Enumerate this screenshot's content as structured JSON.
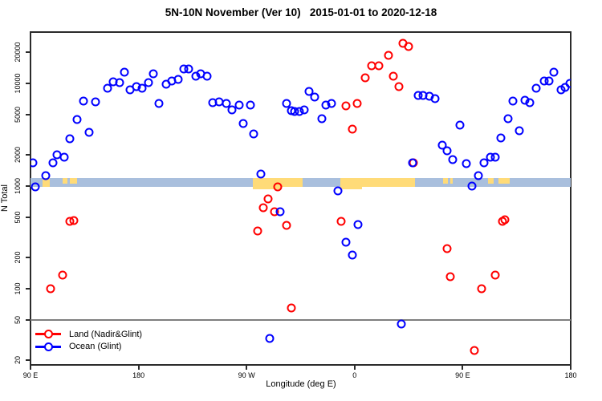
{
  "chart_data": {
    "type": "scatter",
    "title": "5N-10N November (Ver 10)   2015-01-01 to 2020-12-18",
    "xlabel": "Longitude (deg E)",
    "ylabel": "N Total",
    "y_scale": "log",
    "ylim": [
      18,
      32000
    ],
    "y_ticks": [
      20,
      50,
      100,
      200,
      500,
      1000,
      2000,
      5000,
      10000,
      20000
    ],
    "x_axis_note": "x stored as degrees along axis: 0=90E, 90=180, 180=90W, 270=0, 360=90E, 450=180",
    "x_ticks": [
      {
        "deg": 0,
        "label": "90 E"
      },
      {
        "deg": 90,
        "label": "180"
      },
      {
        "deg": 180,
        "label": "90 W"
      },
      {
        "deg": 270,
        "label": "0"
      },
      {
        "deg": 360,
        "label": "90 E"
      },
      {
        "deg": 450,
        "label": "180"
      }
    ],
    "legend_position": "bottom-left",
    "series": [
      {
        "name": "Land (Nadir&Glint)",
        "color": "#ff0000",
        "points": [
          [
            17,
            100
          ],
          [
            27,
            136
          ],
          [
            33,
            453
          ],
          [
            36,
            462
          ],
          [
            189,
            363
          ],
          [
            194,
            614
          ],
          [
            198,
            745
          ],
          [
            203,
            563
          ],
          [
            206,
            985
          ],
          [
            213,
            417
          ],
          [
            217,
            65
          ],
          [
            259,
            453
          ],
          [
            263,
            5990
          ],
          [
            268,
            3600
          ],
          [
            272,
            6350
          ],
          [
            279,
            11300
          ],
          [
            284,
            14800
          ],
          [
            290,
            14800
          ],
          [
            298,
            18900
          ],
          [
            302,
            11800
          ],
          [
            307,
            9350
          ],
          [
            310,
            24600
          ],
          [
            315,
            22700
          ],
          [
            319,
            1690
          ],
          [
            347,
            246
          ],
          [
            350,
            132
          ],
          [
            370,
            25
          ],
          [
            376,
            100
          ],
          [
            387,
            135
          ],
          [
            393,
            453
          ],
          [
            395,
            470
          ]
        ]
      },
      {
        "name": "Ocean (Glint)",
        "color": "#0000ff",
        "points": [
          [
            2,
            1680
          ],
          [
            4,
            990
          ],
          [
            13,
            1270
          ],
          [
            19,
            1670
          ],
          [
            22,
            2030
          ],
          [
            28,
            1910
          ],
          [
            33,
            2900
          ],
          [
            39,
            4470
          ],
          [
            44,
            6720
          ],
          [
            49,
            3360
          ],
          [
            54,
            6570
          ],
          [
            64,
            8940
          ],
          [
            69,
            10400
          ],
          [
            74,
            10200
          ],
          [
            78,
            12800
          ],
          [
            83,
            8710
          ],
          [
            88,
            9340
          ],
          [
            93,
            8980
          ],
          [
            98,
            10100
          ],
          [
            102,
            12500
          ],
          [
            107,
            6380
          ],
          [
            113,
            9820
          ],
          [
            118,
            10600
          ],
          [
            123,
            10900
          ],
          [
            128,
            13800
          ],
          [
            132,
            13800
          ],
          [
            138,
            11800
          ],
          [
            142,
            12300
          ],
          [
            147,
            11800
          ],
          [
            152,
            6450
          ],
          [
            157,
            6580
          ],
          [
            163,
            6350
          ],
          [
            168,
            5550
          ],
          [
            174,
            6180
          ],
          [
            177,
            4100
          ],
          [
            183,
            6180
          ],
          [
            186,
            3230
          ],
          [
            192,
            1320
          ],
          [
            199,
            33
          ],
          [
            208,
            560
          ],
          [
            213,
            6350
          ],
          [
            217,
            5400
          ],
          [
            220,
            5320
          ],
          [
            224,
            5350
          ],
          [
            228,
            5550
          ],
          [
            232,
            8350
          ],
          [
            237,
            7400
          ],
          [
            243,
            4500
          ],
          [
            246,
            6180
          ],
          [
            251,
            6350
          ],
          [
            256,
            890
          ],
          [
            263,
            285
          ],
          [
            268,
            212
          ],
          [
            273,
            420
          ],
          [
            309,
            45
          ],
          [
            318,
            1680
          ],
          [
            323,
            7580
          ],
          [
            327,
            7580
          ],
          [
            332,
            7500
          ],
          [
            337,
            7140
          ],
          [
            343,
            2500
          ],
          [
            347,
            2220
          ],
          [
            352,
            1800
          ],
          [
            358,
            3900
          ],
          [
            363,
            1650
          ],
          [
            368,
            1000
          ],
          [
            373,
            1260
          ],
          [
            378,
            1690
          ],
          [
            383,
            1920
          ],
          [
            387,
            1920
          ],
          [
            392,
            2940
          ],
          [
            398,
            4500
          ],
          [
            402,
            6720
          ],
          [
            407,
            3450
          ],
          [
            412,
            6850
          ],
          [
            416,
            6450
          ],
          [
            421,
            8980
          ],
          [
            428,
            10600
          ],
          [
            432,
            10500
          ],
          [
            436,
            12800
          ],
          [
            442,
            8710
          ],
          [
            445,
            9100
          ],
          [
            449,
            10000
          ]
        ]
      }
    ],
    "reference_line": {
      "n": 50,
      "color": "#7f7f7f"
    },
    "map_strip": {
      "description": "5N-10N latitude world-map band: light blue = ocean, tan = land",
      "n_top": 1200,
      "n_bottom": 985,
      "ocean_color": "#a9bfdd",
      "land_color": "#ffdb78",
      "land_patches": [
        {
          "from_deg": 10,
          "to_deg": 16,
          "full": true
        },
        {
          "from_deg": 27,
          "to_deg": 31,
          "full": false
        },
        {
          "from_deg": 33,
          "to_deg": 39,
          "full": false
        },
        {
          "from_deg": 185,
          "to_deg": 227,
          "full": true,
          "wedge_to_deg": 209
        },
        {
          "from_deg": 258,
          "to_deg": 320,
          "full": true,
          "wedge_to_deg": 276
        },
        {
          "from_deg": 344,
          "to_deg": 348,
          "full": false
        },
        {
          "from_deg": 350,
          "to_deg": 352,
          "full": false
        },
        {
          "from_deg": 381,
          "to_deg": 386,
          "full": false
        },
        {
          "from_deg": 390,
          "to_deg": 399,
          "full": false
        }
      ]
    }
  }
}
